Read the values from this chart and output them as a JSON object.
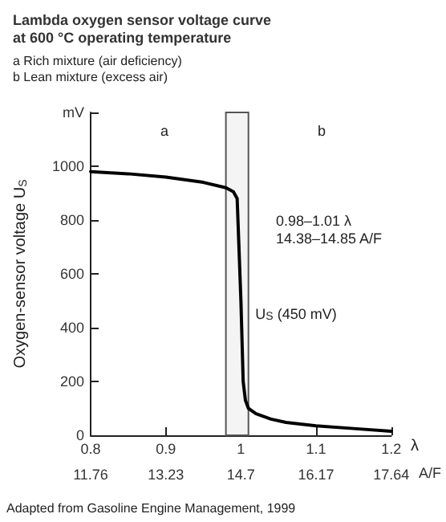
{
  "chart_data": {
    "type": "line",
    "title": "Lambda oxygen sensor voltage curve\nat 600 °C operating temperature",
    "subtitle": "a Rich mixture (air deficiency)\nb Lean mixture (excess air)",
    "ylabel": "Oxygen-sensor voltage U$_{S}$",
    "xlabel": "λ",
    "x2label": "A/F",
    "x": [
      0.8,
      0.85,
      0.9,
      0.95,
      0.98,
      0.99,
      0.995,
      1.0,
      1.003,
      1.006,
      1.01,
      1.02,
      1.04,
      1.06,
      1.1,
      1.15,
      1.2
    ],
    "series": [
      {
        "color": "#000000",
        "values": [
          980,
          972,
          960,
          940,
          920,
          905,
          880,
          500,
          200,
          130,
          100,
          80,
          60,
          48,
          35,
          25,
          15
        ]
      }
    ],
    "xlim": [
      0.8,
      1.2
    ],
    "xticks": [
      0.8,
      0.9,
      1,
      1.1,
      1.2
    ],
    "x2lim": [
      11.76,
      17.64
    ],
    "x2ticks": [
      11.76,
      13.23,
      14.7,
      16.17,
      17.64
    ],
    "ylim": [
      0,
      1200
    ],
    "yticks": [
      0,
      200,
      400,
      600,
      800,
      1000,
      {
        "value": 1200,
        "label": "mV"
      }
    ],
    "bands": [
      {
        "axis": "x",
        "from": 0.98,
        "to": 1.01,
        "color": "#f4f4f4"
      }
    ],
    "annotations": [
      "a",
      "b",
      "0.98–1.01 λ\n14.38–14.85 A/F",
      {
        "text": "U$_{S}$ (450 mV)",
        "x": 1.0,
        "y": 450
      },
      "Adapted from Gasoline Engine Management, 1999"
    ],
    "grid": false,
    "marker": "none",
    "line_style": "solid"
  }
}
